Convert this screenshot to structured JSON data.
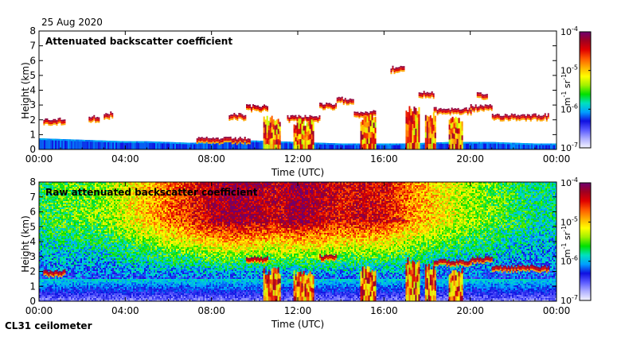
{
  "date_label": "25 Aug 2020",
  "footer_label": "CL31 ceilometer",
  "colors": {
    "frame": "#000000",
    "colormap": [
      "#f4f4ff",
      "#b0b0ff",
      "#5a5aff",
      "#1010e0",
      "#00a0ff",
      "#00e0c0",
      "#00e000",
      "#a0f000",
      "#ffff00",
      "#ffb000",
      "#ff5a00",
      "#e00000",
      "#a00020",
      "#700070"
    ]
  },
  "colorbar": {
    "exponents": [
      "-4",
      "-5",
      "-6",
      "-7"
    ],
    "tick_values": [
      0.0001,
      1e-05,
      1e-06,
      1e-07
    ],
    "unit_parts": [
      "m",
      "-1",
      " sr",
      "-1"
    ]
  },
  "chart_data": [
    {
      "type": "heatmap",
      "title": "Attenuated backscatter coefficient",
      "xlabel": "Time (UTC)",
      "ylabel": "Height (km)",
      "xlim": [
        0,
        24
      ],
      "ylim": [
        0,
        8
      ],
      "xticks": [
        "00:00",
        "04:00",
        "08:00",
        "12:00",
        "16:00",
        "20:00",
        "00:00"
      ],
      "yticks": [
        "0",
        "1",
        "2",
        "3",
        "4",
        "5",
        "6",
        "7",
        "8"
      ],
      "colorbar_range": [
        1e-07,
        0.0001
      ],
      "colorbar_scale": "log",
      "features": {
        "boundary_layer": {
          "height_km_by_hour": [
            0.75,
            0.7,
            0.65,
            0.6,
            0.55,
            0.55,
            0.5,
            0.45,
            0.5,
            0.6,
            0.6,
            0.55,
            0.5,
            0.45,
            0.4,
            0.4,
            0.4,
            0.4,
            0.45,
            0.5,
            0.5,
            0.5,
            0.45,
            0.4,
            0.4
          ]
        },
        "cloud_layers": [
          {
            "start_h": 0.2,
            "end_h": 1.2,
            "height_km": 1.9
          },
          {
            "start_h": 2.3,
            "end_h": 2.8,
            "height_km": 2.1
          },
          {
            "start_h": 3.0,
            "end_h": 3.4,
            "height_km": 2.3
          },
          {
            "start_h": 7.3,
            "end_h": 9.8,
            "height_km": 0.6
          },
          {
            "start_h": 8.8,
            "end_h": 9.6,
            "height_km": 2.2
          },
          {
            "start_h": 9.6,
            "end_h": 10.6,
            "height_km": 2.8
          },
          {
            "start_h": 11.5,
            "end_h": 13.0,
            "height_km": 2.1
          },
          {
            "start_h": 13.0,
            "end_h": 13.8,
            "height_km": 2.9
          },
          {
            "start_h": 13.8,
            "end_h": 14.6,
            "height_km": 3.3
          },
          {
            "start_h": 14.6,
            "end_h": 15.6,
            "height_km": 2.4
          },
          {
            "start_h": 16.3,
            "end_h": 16.9,
            "height_km": 5.4
          },
          {
            "start_h": 17.6,
            "end_h": 18.3,
            "height_km": 3.7
          },
          {
            "start_h": 18.3,
            "end_h": 20.0,
            "height_km": 2.6
          },
          {
            "start_h": 20.0,
            "end_h": 21.0,
            "height_km": 2.8
          },
          {
            "start_h": 20.3,
            "end_h": 20.8,
            "height_km": 3.6
          },
          {
            "start_h": 21.0,
            "end_h": 23.6,
            "height_km": 2.2
          }
        ],
        "precipitation_shafts": [
          {
            "start_h": 10.4,
            "end_h": 11.2,
            "top_km": 2.3
          },
          {
            "start_h": 11.8,
            "end_h": 12.7,
            "top_km": 2.1
          },
          {
            "start_h": 14.9,
            "end_h": 15.6,
            "top_km": 2.4
          },
          {
            "start_h": 17.0,
            "end_h": 17.6,
            "top_km": 3.0
          },
          {
            "start_h": 17.9,
            "end_h": 18.4,
            "top_km": 2.6
          },
          {
            "start_h": 19.0,
            "end_h": 19.6,
            "top_km": 2.3
          }
        ]
      }
    },
    {
      "type": "heatmap",
      "title": "Raw attenuated backscatter coefficient",
      "xlabel": "Time (UTC)",
      "ylabel": "Height (km)",
      "xlim": [
        0,
        24
      ],
      "ylim": [
        0,
        8
      ],
      "xticks": [
        "00:00",
        "04:00",
        "08:00",
        "12:00",
        "16:00",
        "20:00",
        "00:00"
      ],
      "yticks": [
        "0",
        "1",
        "2",
        "3",
        "4",
        "5",
        "6",
        "7",
        "8"
      ],
      "colorbar_range": [
        1e-07,
        0.0001
      ],
      "colorbar_scale": "log",
      "features": {
        "noise_level_by_hour": [
          0.45,
          0.48,
          0.5,
          0.52,
          0.6,
          0.68,
          0.75,
          0.82,
          0.9,
          0.95,
          0.92,
          0.88,
          0.95,
          0.9,
          0.85,
          0.88,
          0.85,
          0.75,
          0.68,
          0.6,
          0.55,
          0.5,
          0.45,
          0.4,
          0.4
        ],
        "clear_near_surface_km": 1.5,
        "cloud_layers": [
          {
            "start_h": 0.2,
            "end_h": 1.2,
            "height_km": 1.9
          },
          {
            "start_h": 9.6,
            "end_h": 10.6,
            "height_km": 2.8
          },
          {
            "start_h": 13.0,
            "end_h": 13.8,
            "height_km": 2.9
          },
          {
            "start_h": 16.3,
            "end_h": 16.9,
            "height_km": 5.4
          },
          {
            "start_h": 18.3,
            "end_h": 20.0,
            "height_km": 2.6
          },
          {
            "start_h": 20.0,
            "end_h": 21.0,
            "height_km": 2.8
          },
          {
            "start_h": 21.0,
            "end_h": 23.6,
            "height_km": 2.2
          }
        ],
        "precipitation_shafts": [
          {
            "start_h": 10.4,
            "end_h": 11.2,
            "top_km": 2.3
          },
          {
            "start_h": 11.8,
            "end_h": 12.7,
            "top_km": 2.1
          },
          {
            "start_h": 14.9,
            "end_h": 15.6,
            "top_km": 2.4
          },
          {
            "start_h": 17.0,
            "end_h": 17.6,
            "top_km": 3.0
          },
          {
            "start_h": 17.9,
            "end_h": 18.4,
            "top_km": 2.6
          },
          {
            "start_h": 19.0,
            "end_h": 19.6,
            "top_km": 2.3
          }
        ]
      }
    }
  ]
}
